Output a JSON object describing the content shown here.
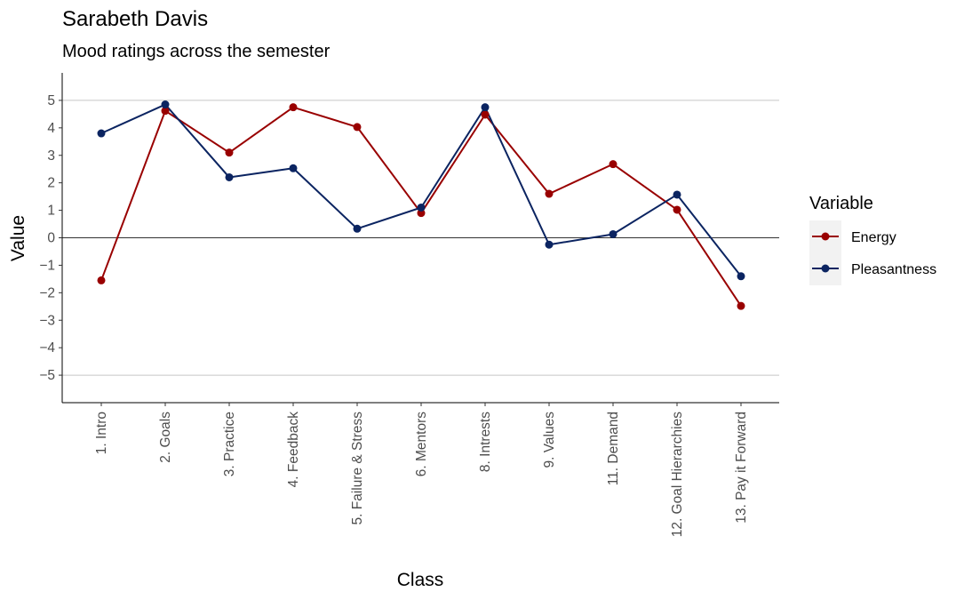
{
  "chart_data": {
    "type": "line",
    "title": "Sarabeth Davis",
    "subtitle": "Mood ratings across the semester",
    "xlabel": "Class",
    "ylabel": "Value",
    "categories": [
      "1. Intro",
      "2. Goals",
      "3. Practice",
      "4. Feedback",
      "5. Failure & Stress",
      "6. Mentors",
      "8. Intrests",
      "9. Values",
      "11. Demand",
      "12. Goal Hierarchies",
      "13. Pay it Forward"
    ],
    "ylim": [
      -6,
      6
    ],
    "yticks": [
      -5,
      -4,
      -3,
      -2,
      -1,
      0,
      1,
      2,
      3,
      4,
      5
    ],
    "ytick_labels": [
      "−5",
      "−4",
      "−3",
      "−2",
      "−1",
      "0",
      "1",
      "2",
      "3",
      "4",
      "5"
    ],
    "gridlines_at": [
      -5,
      5
    ],
    "zero_line": true,
    "legend": {
      "title": "Variable",
      "position": "right"
    },
    "series": [
      {
        "name": "Energy",
        "color": "#990000",
        "values": [
          -1.55,
          4.62,
          3.1,
          4.75,
          4.03,
          0.9,
          4.48,
          1.6,
          2.68,
          1.02,
          -2.48
        ]
      },
      {
        "name": "Pleasantness",
        "color": "#0b2461",
        "values": [
          3.8,
          4.85,
          2.2,
          2.53,
          0.33,
          1.1,
          4.75,
          -0.25,
          0.13,
          1.57,
          -1.4
        ]
      }
    ]
  }
}
